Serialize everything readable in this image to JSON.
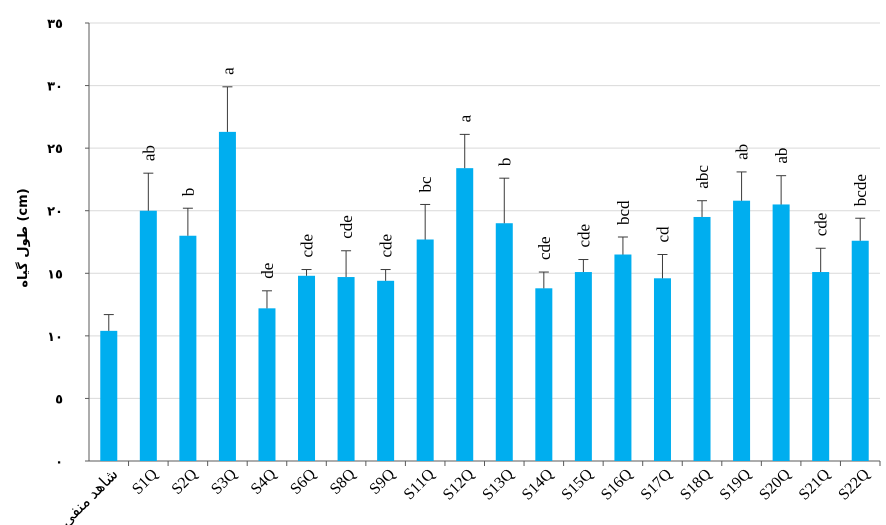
{
  "chart_data": {
    "type": "bar",
    "title": "",
    "xlabel": "",
    "ylabel": "طول گیاه (cm)",
    "ylim": [
      0,
      35
    ],
    "yticks": [
      0,
      5,
      10,
      15,
      20,
      25,
      30,
      35
    ],
    "ytick_labels": [
      "٠",
      "٥",
      "١٠",
      "١٥",
      "٢٠",
      "٢٥",
      "٣٠",
      "٣٥"
    ],
    "grid": true,
    "legend": "none",
    "bar_color": "#00AEEF",
    "categories": [
      "شاهد منفی",
      "S1Q",
      "S2Q",
      "S3Q",
      "S4Q",
      "S6Q",
      "S8Q",
      "S9Q",
      "S11Q",
      "S12Q",
      "S13Q",
      "S14Q",
      "S15Q",
      "S16Q",
      "S17Q",
      "S18Q",
      "S19Q",
      "S20Q",
      "S21Q",
      "S22Q"
    ],
    "values": [
      10.4,
      20.0,
      18.0,
      26.3,
      12.2,
      14.8,
      14.7,
      14.4,
      17.7,
      23.4,
      19.0,
      13.8,
      15.1,
      16.5,
      14.6,
      19.5,
      20.8,
      20.5,
      15.1,
      17.6
    ],
    "errors": [
      1.3,
      3.0,
      2.2,
      3.6,
      1.4,
      0.5,
      2.1,
      0.9,
      2.8,
      2.7,
      3.6,
      1.3,
      1.0,
      1.4,
      1.9,
      1.3,
      2.3,
      2.3,
      1.9,
      1.8
    ],
    "significance_letters": [
      "",
      "ab",
      "b",
      "a",
      "de",
      "cde",
      "cde",
      "cde",
      "bc",
      "a",
      "b",
      "cde",
      "cde",
      "bcd",
      "cd",
      "abc",
      "ab",
      "ab",
      "cde",
      "bcde"
    ]
  }
}
